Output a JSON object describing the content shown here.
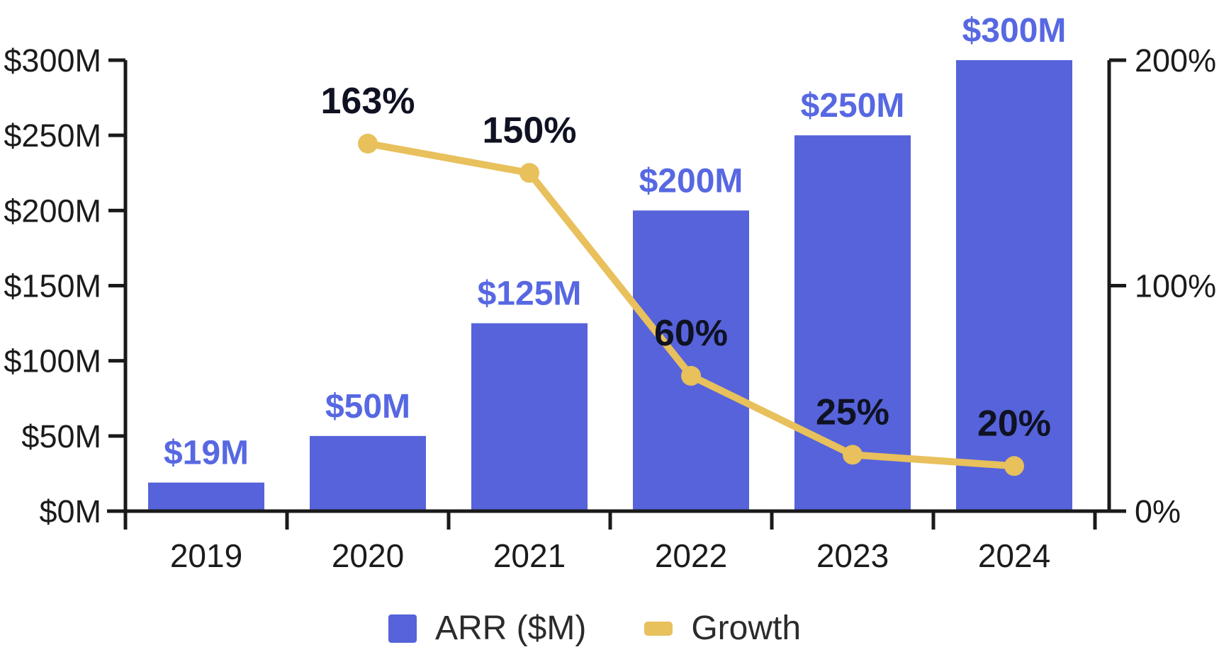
{
  "chart_data": {
    "type": "bar",
    "subtype": "combo-bar-line-dual-axis",
    "title": "",
    "categories": [
      "2019",
      "2020",
      "2021",
      "2022",
      "2023",
      "2024"
    ],
    "series": [
      {
        "name": "ARR ($M)",
        "type": "bar",
        "axis": "left",
        "values": [
          19,
          50,
          125,
          200,
          250,
          300
        ],
        "labels": [
          "$19M",
          "$50M",
          "$125M",
          "$200M",
          "$250M",
          "$300M"
        ],
        "color": "#5663DA",
        "label_color": "#5768E2"
      },
      {
        "name": "Growth",
        "type": "line",
        "axis": "right",
        "values": [
          null,
          163,
          150,
          60,
          25,
          20
        ],
        "labels": [
          null,
          "163%",
          "150%",
          "60%",
          "25%",
          "20%"
        ],
        "color": "#E8C05C",
        "label_color": "#0F1222"
      }
    ],
    "left_axis": {
      "min": 0,
      "max": 300,
      "tick_values": [
        0,
        50,
        100,
        150,
        200,
        250,
        300
      ],
      "tick_labels": [
        "$0M",
        "$50M",
        "$100M",
        "$150M",
        "$200M",
        "$250M",
        "$300M"
      ]
    },
    "right_axis": {
      "min": 0,
      "max": 200,
      "tick_values": [
        0,
        100,
        200
      ],
      "tick_labels": [
        "0%",
        "100%",
        "200%"
      ]
    },
    "grid": false,
    "legend_position": "bottom",
    "axis_color": "#1A1A1A",
    "text_color": "#1B1B1B",
    "background": "#FFFFFF"
  }
}
